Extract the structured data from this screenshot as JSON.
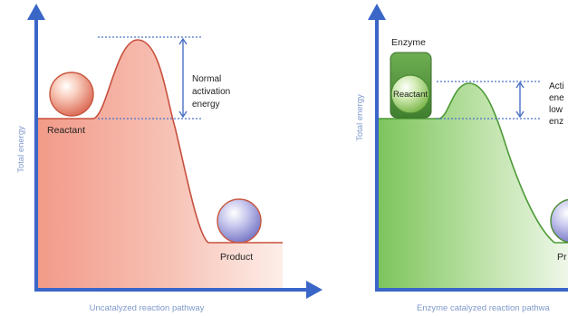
{
  "left_panel": {
    "y_axis_label": "Total energy",
    "x_axis_label": "Uncatalyzed reaction pathway",
    "reactant_label": "Reactant",
    "product_label": "Product",
    "activation_label": [
      "Normal",
      "activation",
      "energy"
    ]
  },
  "right_panel": {
    "y_axis_label": "Total energy",
    "x_axis_label": "Enzyme catalyzed reaction pathwa",
    "enzyme_label": "Enzyme",
    "reactant_label": "Reactant",
    "product_label": "Pr",
    "activation_label": [
      "Acti",
      "ene",
      "low",
      "enz"
    ]
  },
  "colors": {
    "axis": "#3a66c8",
    "axis_label": "#7f99cc",
    "uncatalyzed_fill": "#f4a595",
    "uncatalyzed_curve": "#c8503e",
    "catalyzed_fill": "#8ccd6c",
    "catalyzed_curve": "#4d9a36",
    "enzyme": "#4f8c3c",
    "bracket": "#4a70c8"
  }
}
